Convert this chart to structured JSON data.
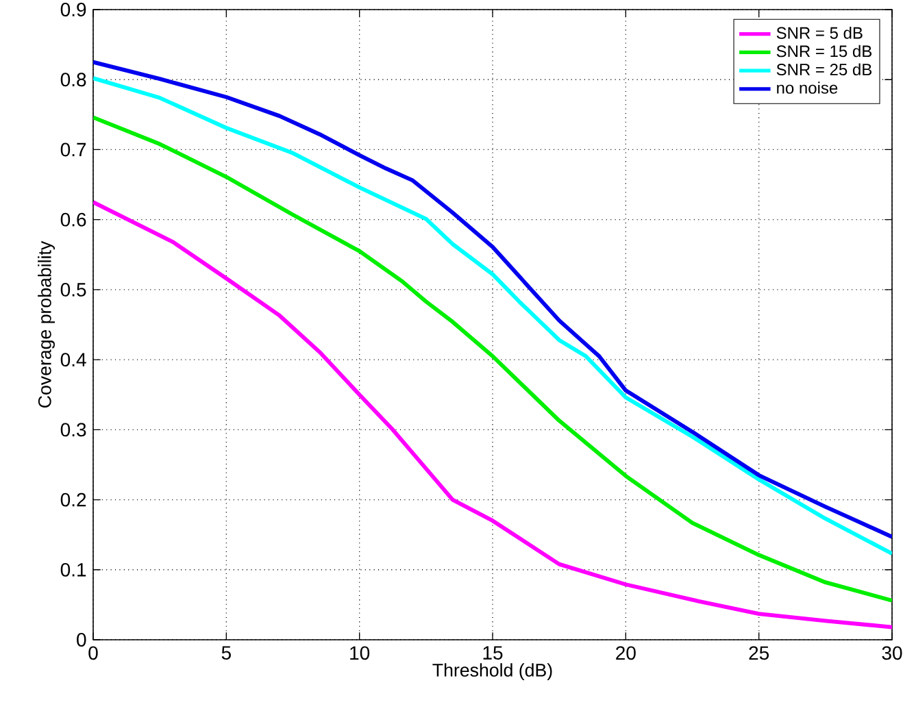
{
  "chart_data": {
    "type": "line",
    "xlabel": "Threshold (dB)",
    "ylabel": "Coverage probability",
    "xlim": [
      0,
      30
    ],
    "ylim": [
      0,
      0.9
    ],
    "xticks": [
      0,
      5,
      10,
      15,
      20,
      25,
      30
    ],
    "yticks": [
      0,
      0.1,
      0.2,
      0.3,
      0.4,
      0.5,
      0.6,
      0.7,
      0.8,
      0.9
    ],
    "grid": true,
    "legend": "top right",
    "line_style": "solid",
    "marker": "none",
    "series": [
      {
        "name": "SNR = 5 dB",
        "color": "#ff00ff",
        "x": [
          0,
          3,
          5,
          7,
          8.5,
          10,
          11.25,
          13.5,
          15,
          17.5,
          20,
          22.5,
          25,
          27.5,
          30
        ],
        "values": [
          0.625,
          0.568,
          0.516,
          0.463,
          0.411,
          0.35,
          0.3,
          0.2,
          0.17,
          0.108,
          0.079,
          0.057,
          0.037,
          0.027,
          0.018
        ]
      },
      {
        "name": "SNR = 15 dB",
        "color": "#00ee00",
        "x": [
          0,
          2.5,
          5,
          7.5,
          10,
          11.6,
          12.5,
          13.5,
          15,
          17.5,
          20,
          22.5,
          25,
          27.5,
          30
        ],
        "values": [
          0.746,
          0.708,
          0.661,
          0.607,
          0.555,
          0.512,
          0.483,
          0.454,
          0.405,
          0.313,
          0.234,
          0.167,
          0.121,
          0.082,
          0.056
        ]
      },
      {
        "name": "SNR = 25 dB",
        "color": "#00ffff",
        "x": [
          0,
          2.5,
          5,
          7.5,
          10,
          12.5,
          13.5,
          15,
          16,
          17.5,
          18.5,
          20,
          22.5,
          25,
          27.5,
          30
        ],
        "values": [
          0.802,
          0.774,
          0.731,
          0.695,
          0.646,
          0.601,
          0.565,
          0.522,
          0.483,
          0.428,
          0.405,
          0.346,
          0.29,
          0.229,
          0.173,
          0.123
        ]
      },
      {
        "name": "no noise",
        "color": "#0000ee",
        "x": [
          0,
          2.5,
          5,
          7,
          8.5,
          10,
          11,
          12,
          13.5,
          15,
          17.5,
          19,
          20,
          22.5,
          25,
          27.5,
          30
        ],
        "values": [
          0.825,
          0.801,
          0.775,
          0.748,
          0.722,
          0.692,
          0.673,
          0.656,
          0.61,
          0.561,
          0.456,
          0.405,
          0.356,
          0.297,
          0.235,
          0.19,
          0.147
        ]
      }
    ]
  }
}
